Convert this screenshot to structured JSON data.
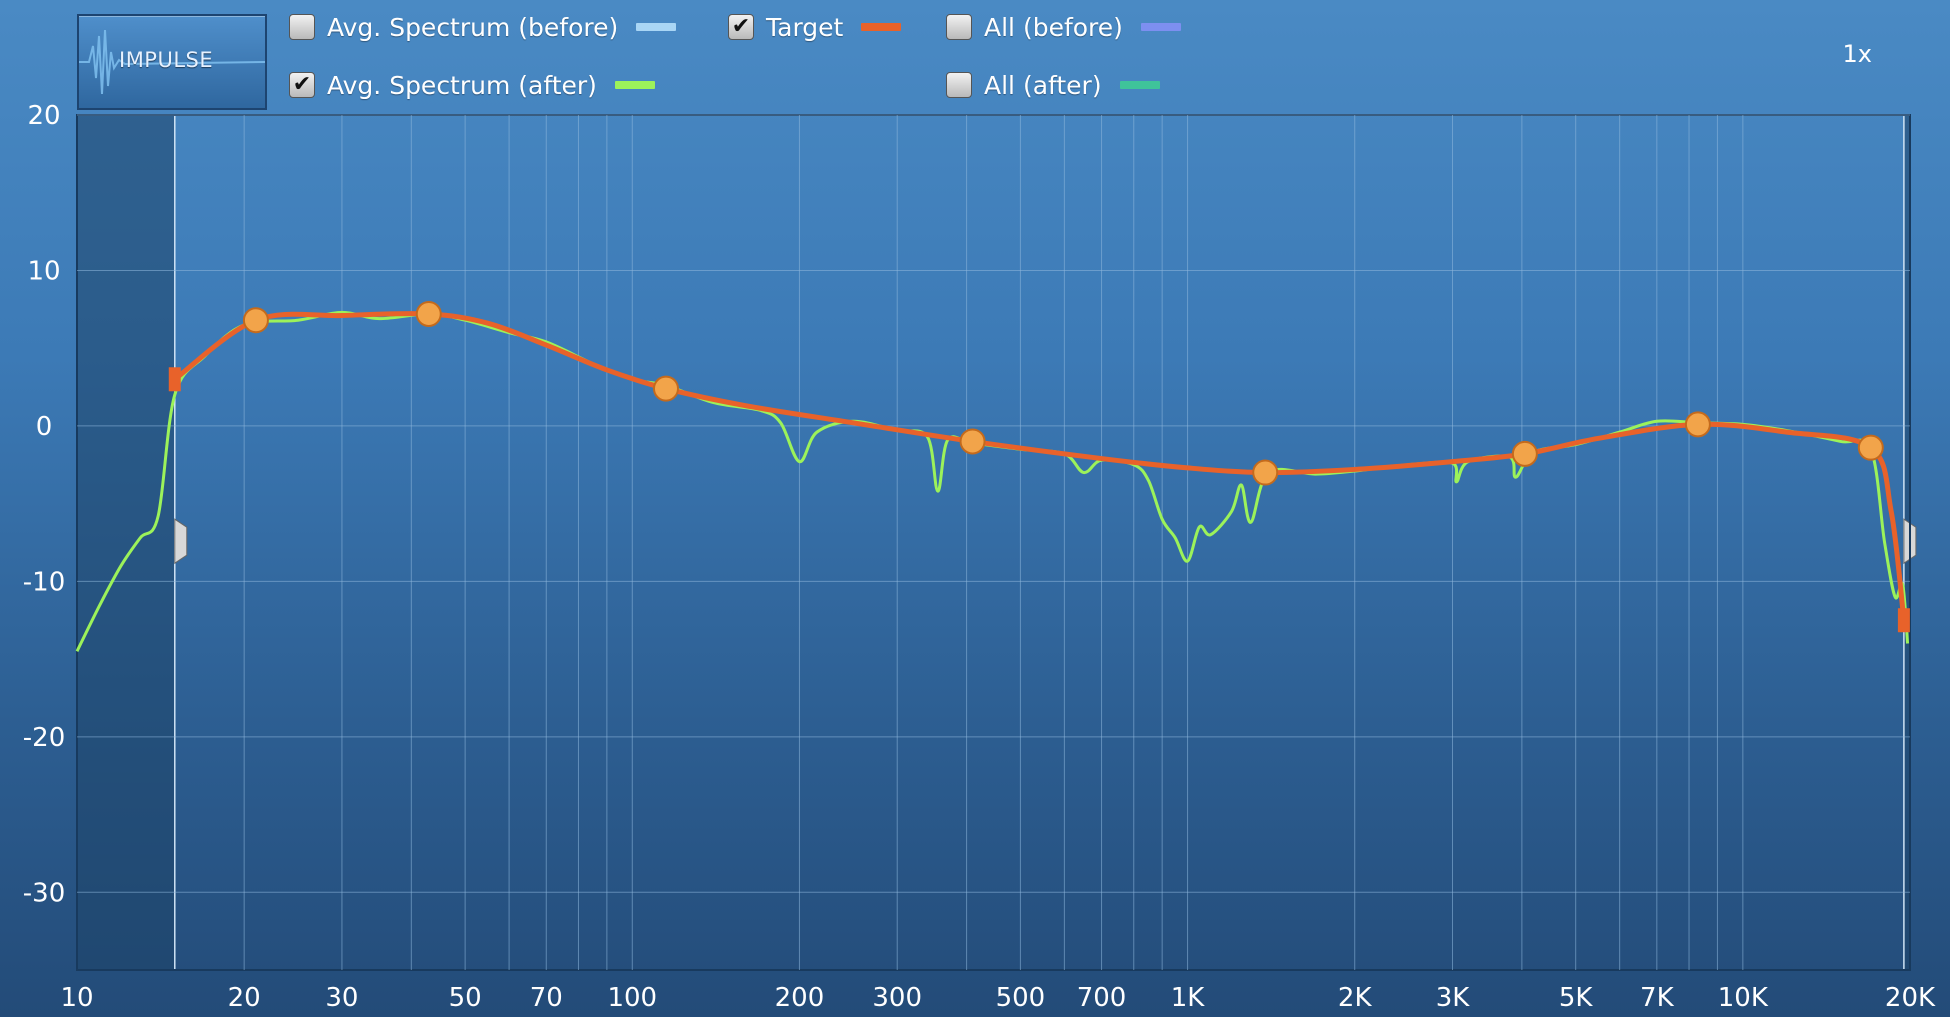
{
  "toolbar": {
    "impulse_label": "IMPULSE",
    "zoom_label": "1x"
  },
  "legend": [
    {
      "key": "avg_before",
      "label": "Avg. Spectrum (before)",
      "checked": false,
      "color": "#a9d6f5"
    },
    {
      "key": "target",
      "label": "Target",
      "checked": true,
      "color": "#e8622a"
    },
    {
      "key": "all_before",
      "label": "All (before)",
      "checked": false,
      "color": "#7d8ff0"
    },
    {
      "key": "avg_after",
      "label": "Avg. Spectrum (after)",
      "checked": true,
      "color": "#9cf25a"
    },
    {
      "key": "all_after",
      "label": "All (after)",
      "checked": false,
      "color": "#3fc39a"
    }
  ],
  "colors": {
    "grid": "#8fb8dd",
    "target_line": "#e8622a",
    "target_point": "#f2a44a",
    "measured": "#9cf25a",
    "measured_left": "#8ec86a",
    "shade": "#1e4468"
  },
  "chart_data": {
    "type": "line",
    "x_scale": "log",
    "xlim": [
      10,
      20000
    ],
    "ylim": [
      -35,
      20
    ],
    "x_ticks": [
      {
        "v": 10,
        "label": "10"
      },
      {
        "v": 20,
        "label": "20"
      },
      {
        "v": 30,
        "label": "30"
      },
      {
        "v": 50,
        "label": "50"
      },
      {
        "v": 70,
        "label": "70"
      },
      {
        "v": 100,
        "label": "100"
      },
      {
        "v": 200,
        "label": "200"
      },
      {
        "v": 300,
        "label": "300"
      },
      {
        "v": 500,
        "label": "500"
      },
      {
        "v": 700,
        "label": "700"
      },
      {
        "v": 1000,
        "label": "1K"
      },
      {
        "v": 2000,
        "label": "2K"
      },
      {
        "v": 3000,
        "label": "3K"
      },
      {
        "v": 5000,
        "label": "5K"
      },
      {
        "v": 7000,
        "label": "7K"
      },
      {
        "v": 10000,
        "label": "10K"
      },
      {
        "v": 20000,
        "label": "20K"
      }
    ],
    "y_ticks": [
      {
        "v": 20,
        "label": "20"
      },
      {
        "v": 10,
        "label": "10"
      },
      {
        "v": 0,
        "label": "0"
      },
      {
        "v": -10,
        "label": "-10"
      },
      {
        "v": -20,
        "label": "-20"
      },
      {
        "v": -30,
        "label": "-30"
      }
    ],
    "minor_x_gridlines": [
      40,
      60,
      80,
      90,
      400,
      600,
      800,
      900,
      4000,
      6000,
      8000,
      9000
    ],
    "range_lower_hz": 15,
    "range_upper_hz": 19500,
    "target_points": [
      {
        "x": 21,
        "y": 6.8
      },
      {
        "x": 43,
        "y": 7.2
      },
      {
        "x": 115,
        "y": 2.4
      },
      {
        "x": 410,
        "y": -1.0
      },
      {
        "x": 1380,
        "y": -3.0
      },
      {
        "x": 4050,
        "y": -1.8
      },
      {
        "x": 8300,
        "y": 0.1
      },
      {
        "x": 17000,
        "y": -1.4
      }
    ],
    "target_curve": [
      {
        "x": 15,
        "y": 3.0
      },
      {
        "x": 21,
        "y": 6.8
      },
      {
        "x": 30,
        "y": 7.1
      },
      {
        "x": 43,
        "y": 7.2
      },
      {
        "x": 55,
        "y": 6.6
      },
      {
        "x": 70,
        "y": 5.2
      },
      {
        "x": 90,
        "y": 3.6
      },
      {
        "x": 115,
        "y": 2.4
      },
      {
        "x": 160,
        "y": 1.3
      },
      {
        "x": 250,
        "y": 0.2
      },
      {
        "x": 410,
        "y": -1.0
      },
      {
        "x": 700,
        "y": -2.1
      },
      {
        "x": 1000,
        "y": -2.7
      },
      {
        "x": 1380,
        "y": -3.0
      },
      {
        "x": 2000,
        "y": -2.8
      },
      {
        "x": 3000,
        "y": -2.3
      },
      {
        "x": 4050,
        "y": -1.8
      },
      {
        "x": 5500,
        "y": -0.8
      },
      {
        "x": 8300,
        "y": 0.1
      },
      {
        "x": 12000,
        "y": -0.4
      },
      {
        "x": 17000,
        "y": -1.4
      },
      {
        "x": 18500,
        "y": -5.5
      },
      {
        "x": 19500,
        "y": -12.5
      }
    ],
    "measured_after": [
      {
        "x": 10,
        "y": -14.5
      },
      {
        "x": 11,
        "y": -11.5
      },
      {
        "x": 12,
        "y": -9
      },
      {
        "x": 13,
        "y": -7.2
      },
      {
        "x": 14,
        "y": -5.8
      },
      {
        "x": 15,
        "y": 2.0
      },
      {
        "x": 17,
        "y": 4.5
      },
      {
        "x": 20,
        "y": 6.5
      },
      {
        "x": 25,
        "y": 6.8
      },
      {
        "x": 30,
        "y": 7.3
      },
      {
        "x": 35,
        "y": 6.9
      },
      {
        "x": 43,
        "y": 7.2
      },
      {
        "x": 50,
        "y": 6.8
      },
      {
        "x": 60,
        "y": 6.0
      },
      {
        "x": 70,
        "y": 5.4
      },
      {
        "x": 85,
        "y": 4.0
      },
      {
        "x": 100,
        "y": 3.0
      },
      {
        "x": 115,
        "y": 2.6
      },
      {
        "x": 140,
        "y": 1.5
      },
      {
        "x": 170,
        "y": 1.0
      },
      {
        "x": 185,
        "y": 0.2
      },
      {
        "x": 200,
        "y": -2.3
      },
      {
        "x": 215,
        "y": -0.4
      },
      {
        "x": 250,
        "y": 0.3
      },
      {
        "x": 300,
        "y": -0.3
      },
      {
        "x": 340,
        "y": -0.7
      },
      {
        "x": 355,
        "y": -4.2
      },
      {
        "x": 370,
        "y": -0.9
      },
      {
        "x": 410,
        "y": -1.1
      },
      {
        "x": 500,
        "y": -1.5
      },
      {
        "x": 600,
        "y": -1.8
      },
      {
        "x": 650,
        "y": -3.0
      },
      {
        "x": 700,
        "y": -2.2
      },
      {
        "x": 800,
        "y": -2.5
      },
      {
        "x": 850,
        "y": -3.5
      },
      {
        "x": 900,
        "y": -6.0
      },
      {
        "x": 950,
        "y": -7.2
      },
      {
        "x": 1000,
        "y": -8.7
      },
      {
        "x": 1050,
        "y": -6.5
      },
      {
        "x": 1100,
        "y": -7.0
      },
      {
        "x": 1200,
        "y": -5.5
      },
      {
        "x": 1250,
        "y": -3.8
      },
      {
        "x": 1300,
        "y": -6.2
      },
      {
        "x": 1400,
        "y": -3.0
      },
      {
        "x": 1700,
        "y": -3.1
      },
      {
        "x": 2000,
        "y": -2.9
      },
      {
        "x": 2500,
        "y": -2.5
      },
      {
        "x": 3000,
        "y": -2.4
      },
      {
        "x": 3050,
        "y": -3.6
      },
      {
        "x": 3200,
        "y": -2.3
      },
      {
        "x": 3800,
        "y": -2.0
      },
      {
        "x": 3900,
        "y": -3.3
      },
      {
        "x": 4200,
        "y": -1.7
      },
      {
        "x": 5000,
        "y": -1.2
      },
      {
        "x": 6000,
        "y": -0.4
      },
      {
        "x": 7000,
        "y": 0.3
      },
      {
        "x": 8300,
        "y": 0.2
      },
      {
        "x": 10000,
        "y": 0.1
      },
      {
        "x": 12000,
        "y": -0.3
      },
      {
        "x": 15000,
        "y": -1.0
      },
      {
        "x": 17000,
        "y": -1.5
      },
      {
        "x": 18000,
        "y": -7.5
      },
      {
        "x": 18800,
        "y": -11.0
      },
      {
        "x": 19400,
        "y": -10.2
      },
      {
        "x": 19800,
        "y": -14.0
      }
    ]
  }
}
